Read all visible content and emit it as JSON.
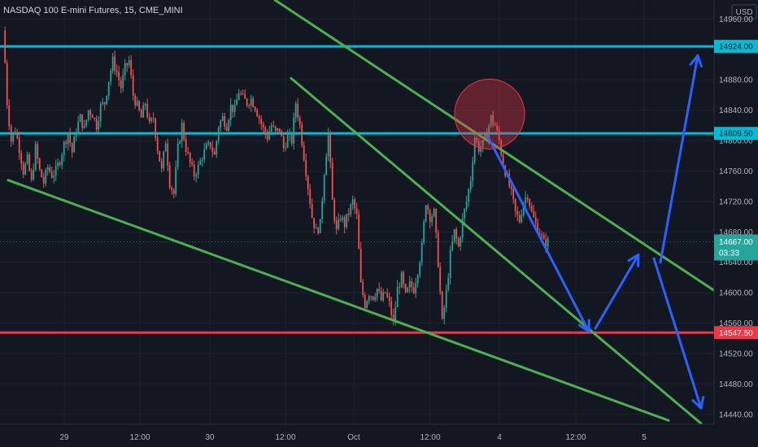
{
  "header": {
    "title": "NASDAQ 100 E-mini Futures, 15, CME_MINI"
  },
  "chart_data": {
    "type": "candlestick",
    "currency_label": "USD",
    "y_ticks": [
      "14960.00",
      "14880.00",
      "14840.00",
      "14800.00",
      "14760.00",
      "14720.00",
      "14680.00",
      "14640.00",
      "14600.00",
      "14560.00",
      "14520.00",
      "14480.00",
      "14440.00"
    ],
    "x_ticks": [
      {
        "label": "29",
        "x": 79
      },
      {
        "label": "12:00",
        "x": 172
      },
      {
        "label": "30",
        "x": 258
      },
      {
        "label": "12:00",
        "x": 351
      },
      {
        "label": "Oct",
        "x": 435
      },
      {
        "label": "12:00",
        "x": 529
      },
      {
        "label": "4",
        "x": 614
      },
      {
        "label": "12:00",
        "x": 708
      },
      {
        "label": "5",
        "x": 792
      }
    ],
    "ylim": [
      14427,
      14985
    ],
    "price_labels": [
      {
        "name": "resistance-upper",
        "price": 14924,
        "text": "14924.00",
        "color": "#00bcd4"
      },
      {
        "name": "resistance-lower",
        "price": 14809.5,
        "text": "14809.50",
        "color": "#00bcd4"
      },
      {
        "name": "current-price",
        "price": 14667,
        "text": "14667.00",
        "color": "#26a69a",
        "countdown": "03:33"
      },
      {
        "name": "support",
        "price": 14547.5,
        "text": "14547.50",
        "color": "#f23645"
      }
    ],
    "close_path": [
      [
        5,
        14955
      ],
      [
        10,
        14850
      ],
      [
        15,
        14800
      ],
      [
        20,
        14815
      ],
      [
        25,
        14790
      ],
      [
        30,
        14760
      ],
      [
        35,
        14775
      ],
      [
        40,
        14745
      ],
      [
        45,
        14790
      ],
      [
        50,
        14760
      ],
      [
        55,
        14745
      ],
      [
        60,
        14765
      ],
      [
        65,
        14755
      ],
      [
        70,
        14760
      ],
      [
        75,
        14775
      ],
      [
        80,
        14795
      ],
      [
        85,
        14810
      ],
      [
        90,
        14785
      ],
      [
        95,
        14815
      ],
      [
        100,
        14830
      ],
      [
        105,
        14815
      ],
      [
        110,
        14840
      ],
      [
        115,
        14835
      ],
      [
        120,
        14820
      ],
      [
        125,
        14845
      ],
      [
        130,
        14850
      ],
      [
        135,
        14880
      ],
      [
        140,
        14905
      ],
      [
        145,
        14890
      ],
      [
        150,
        14870
      ],
      [
        155,
        14895
      ],
      [
        160,
        14905
      ],
      [
        165,
        14860
      ],
      [
        170,
        14845
      ],
      [
        175,
        14830
      ],
      [
        180,
        14850
      ],
      [
        185,
        14820
      ],
      [
        190,
        14830
      ],
      [
        195,
        14790
      ],
      [
        200,
        14760
      ],
      [
        205,
        14800
      ],
      [
        210,
        14745
      ],
      [
        215,
        14730
      ],
      [
        220,
        14790
      ],
      [
        225,
        14820
      ],
      [
        230,
        14790
      ],
      [
        235,
        14770
      ],
      [
        240,
        14755
      ],
      [
        245,
        14765
      ],
      [
        250,
        14780
      ],
      [
        255,
        14790
      ],
      [
        260,
        14795
      ],
      [
        265,
        14780
      ],
      [
        270,
        14820
      ],
      [
        275,
        14830
      ],
      [
        280,
        14820
      ],
      [
        285,
        14845
      ],
      [
        290,
        14840
      ],
      [
        295,
        14865
      ],
      [
        300,
        14855
      ],
      [
        305,
        14850
      ],
      [
        310,
        14855
      ],
      [
        315,
        14845
      ],
      [
        320,
        14830
      ],
      [
        325,
        14815
      ],
      [
        330,
        14805
      ],
      [
        335,
        14820
      ],
      [
        340,
        14810
      ],
      [
        345,
        14815
      ],
      [
        350,
        14790
      ],
      [
        355,
        14805
      ],
      [
        360,
        14800
      ],
      [
        365,
        14850
      ],
      [
        370,
        14820
      ],
      [
        375,
        14780
      ],
      [
        380,
        14740
      ],
      [
        385,
        14700
      ],
      [
        390,
        14680
      ],
      [
        395,
        14690
      ],
      [
        400,
        14760
      ],
      [
        405,
        14810
      ],
      [
        410,
        14720
      ],
      [
        415,
        14680
      ],
      [
        420,
        14700
      ],
      [
        425,
        14690
      ],
      [
        430,
        14705
      ],
      [
        435,
        14720
      ],
      [
        440,
        14700
      ],
      [
        445,
        14610
      ],
      [
        450,
        14585
      ],
      [
        455,
        14600
      ],
      [
        460,
        14595
      ],
      [
        465,
        14605
      ],
      [
        470,
        14590
      ],
      [
        475,
        14600
      ],
      [
        480,
        14585
      ],
      [
        485,
        14560
      ],
      [
        490,
        14605
      ],
      [
        495,
        14620
      ],
      [
        500,
        14595
      ],
      [
        505,
        14610
      ],
      [
        510,
        14605
      ],
      [
        515,
        14630
      ],
      [
        520,
        14660
      ],
      [
        525,
        14720
      ],
      [
        530,
        14700
      ],
      [
        535,
        14705
      ],
      [
        540,
        14640
      ],
      [
        545,
        14560
      ],
      [
        550,
        14600
      ],
      [
        555,
        14650
      ],
      [
        560,
        14680
      ],
      [
        565,
        14660
      ],
      [
        570,
        14695
      ],
      [
        575,
        14720
      ],
      [
        580,
        14750
      ],
      [
        585,
        14805
      ],
      [
        590,
        14790
      ],
      [
        595,
        14795
      ],
      [
        600,
        14810
      ],
      [
        605,
        14830
      ],
      [
        610,
        14820
      ],
      [
        615,
        14800
      ],
      [
        620,
        14770
      ],
      [
        625,
        14750
      ],
      [
        630,
        14730
      ],
      [
        635,
        14705
      ],
      [
        640,
        14695
      ],
      [
        645,
        14720
      ],
      [
        650,
        14730
      ],
      [
        655,
        14705
      ],
      [
        660,
        14690
      ],
      [
        665,
        14680
      ],
      [
        670,
        14665
      ],
      [
        675,
        14667
      ]
    ],
    "trendlines": [
      {
        "name": "channel-top-line",
        "color": "#4caf50",
        "p1": [
          338,
          14985
        ],
        "p2": [
          878,
          14603
        ]
      },
      {
        "name": "channel-middle-line",
        "color": "#4caf50",
        "p1": [
          358,
          14882
        ],
        "p2": [
          862,
          14428
        ]
      },
      {
        "name": "channel-bottom-line",
        "color": "#4caf50",
        "p1": [
          10,
          14748
        ],
        "p2": [
          822,
          14432
        ]
      }
    ],
    "projection_arrows": [
      {
        "name": "projection-arrow-down-1",
        "color": "#2962ff",
        "from": [
          600,
          14805
        ],
        "to": [
          724,
          14549
        ]
      },
      {
        "name": "projection-arrow-up-1",
        "color": "#2962ff",
        "from": [
          732,
          14553
        ],
        "to": [
          785,
          14650
        ]
      },
      {
        "name": "projection-arrow-up-2",
        "color": "#2962ff",
        "from": [
          812,
          14640
        ],
        "to": [
          858,
          14912
        ]
      },
      {
        "name": "projection-arrow-down-2",
        "color": "#2962ff",
        "from": [
          804,
          14645
        ],
        "to": [
          862,
          14448
        ]
      }
    ],
    "highlight_circle": {
      "cx": 602,
      "cy_price": 14835,
      "r": 43,
      "color": "#f23645"
    }
  }
}
